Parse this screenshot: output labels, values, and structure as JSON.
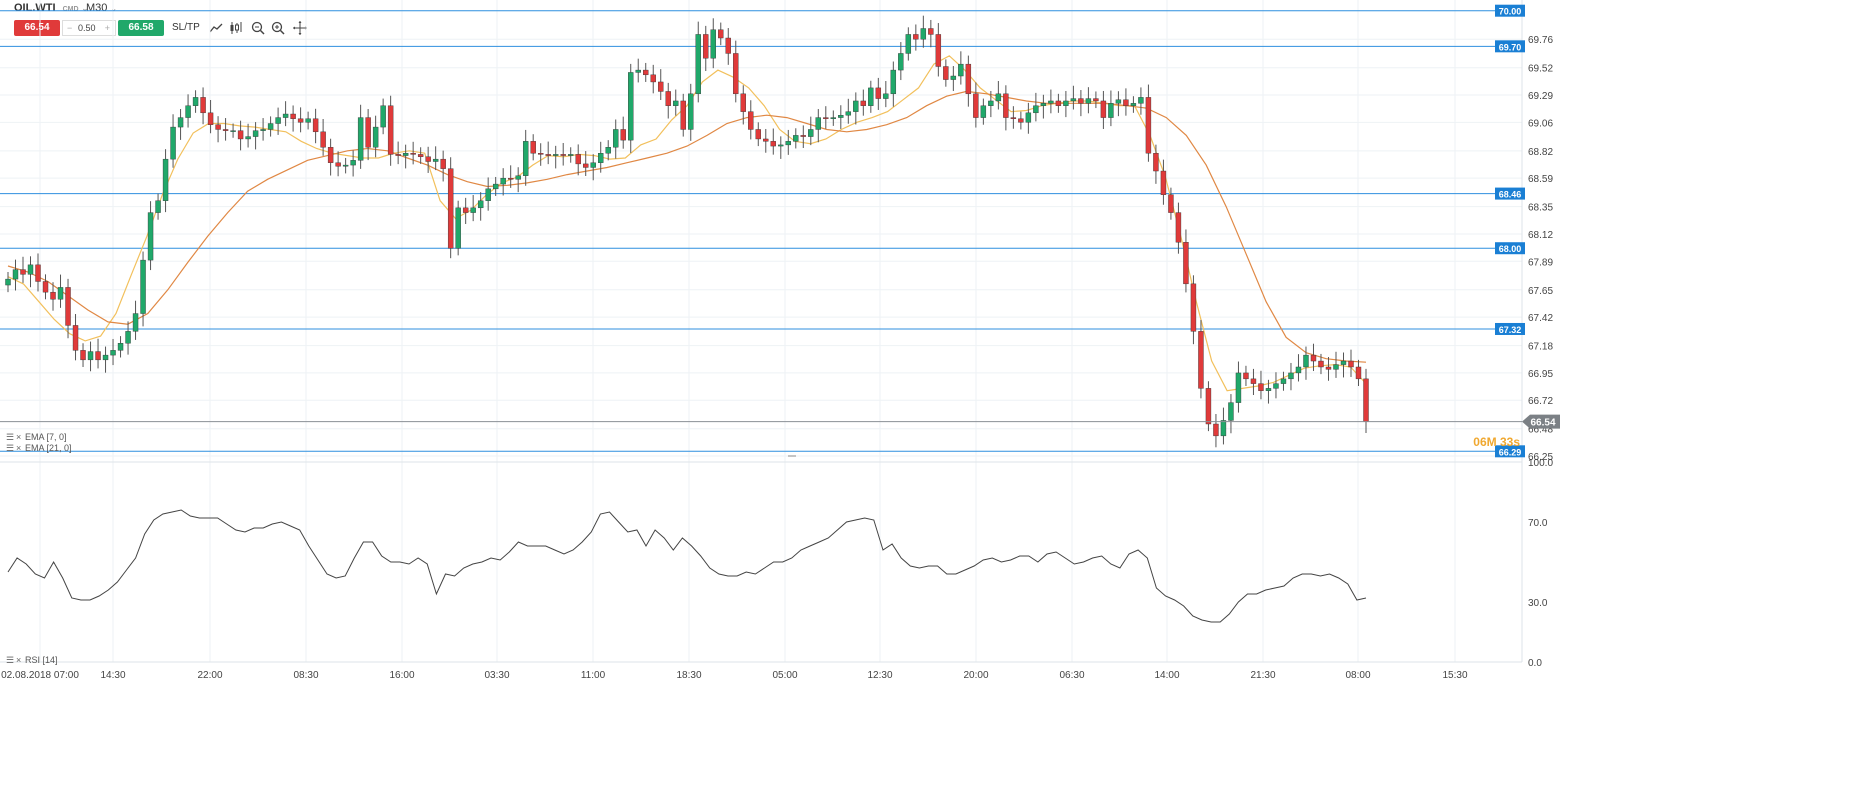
{
  "toolbar": {
    "symbol": "OIL.WTI",
    "market": "CMD",
    "timeframe": "M30",
    "sell_price": "66.54",
    "spread_minus": "−",
    "spread_value": "0.50",
    "spread_plus": "+",
    "buy_price": "66.58",
    "sltp_label": "SL/TP",
    "icons": [
      "line-chart-icon",
      "candlestick-icon",
      "zoom-out-icon",
      "zoom-in-icon",
      "crosshair-icon"
    ]
  },
  "price_axis": {
    "ticks": [
      "69.76",
      "69.52",
      "69.29",
      "69.06",
      "68.82",
      "68.59",
      "68.35",
      "68.12",
      "67.89",
      "67.65",
      "67.42",
      "67.18",
      "66.95",
      "66.72",
      "66.48",
      "66.25"
    ],
    "top_partial_label": "70.00"
  },
  "horizontal_lines": [
    {
      "price": "70.00",
      "label": "70.00"
    },
    {
      "price": "69.70",
      "label": "69.70"
    },
    {
      "price": "68.46",
      "label": "68.46"
    },
    {
      "price": "68.00",
      "label": "68.00"
    },
    {
      "price": "67.32",
      "label": "67.32"
    },
    {
      "price": "66.29",
      "label": "66.29"
    }
  ],
  "current_price": {
    "value": "66.54",
    "countdown": "06M 33s"
  },
  "indicators": [
    {
      "label": "EMA [7, 0]",
      "color": "#f2c05c"
    },
    {
      "label": "EMA [21, 0]",
      "color": "#e08844"
    }
  ],
  "rsi": {
    "label": "RSI [14]",
    "ticks": [
      "100.0",
      "70.0",
      "30.0",
      "0.0"
    ]
  },
  "time_axis": [
    "02.08.2018 07:00",
    "14:30",
    "22:00",
    "08:30",
    "16:00",
    "03:30",
    "11:00",
    "18:30",
    "05:00",
    "12:30",
    "20:00",
    "06:30",
    "14:00",
    "21:30",
    "08:00",
    "15:30"
  ],
  "colors": {
    "up": "#20a86a",
    "down": "#e03a3a",
    "hline": "#2f8fdf",
    "grid": "#eef2f5",
    "rsi_line": "#444444",
    "countdown": "#f0a830"
  },
  "chart_data": {
    "type": "candlestick",
    "ylim": [
      66.25,
      70.0
    ],
    "series": [
      {
        "name": "close",
        "values": [
          67.74,
          67.82,
          67.78,
          67.86,
          67.72,
          67.63,
          67.57,
          67.67,
          67.35,
          67.14,
          67.06,
          67.13,
          67.06,
          67.1,
          67.14,
          67.2,
          67.3,
          67.45,
          67.9,
          68.3,
          68.4,
          68.75,
          69.02,
          69.1,
          69.2,
          69.27,
          69.14,
          69.04,
          69.0,
          68.99,
          68.99,
          68.92,
          68.94,
          68.99,
          69.0,
          69.05,
          69.1,
          69.13,
          69.09,
          69.06,
          69.09,
          68.98,
          68.85,
          68.72,
          68.69,
          68.7,
          68.74,
          69.1,
          68.85,
          69.02,
          69.2,
          68.79,
          68.78,
          68.8,
          68.79,
          68.77,
          68.73,
          68.75,
          68.67,
          68.0,
          68.34,
          68.3,
          68.34,
          68.4,
          68.5,
          68.54,
          68.59,
          68.58,
          68.61,
          68.9,
          68.8,
          68.79,
          68.78,
          68.79,
          68.78,
          68.79,
          68.71,
          68.68,
          68.72,
          68.8,
          68.85,
          69.0,
          68.91,
          69.48,
          69.5,
          69.46,
          69.4,
          69.32,
          69.2,
          69.24,
          69.0,
          69.3,
          69.8,
          69.6,
          69.84,
          69.77,
          69.64,
          69.3,
          69.15,
          69.0,
          68.92,
          68.9,
          68.86,
          68.87,
          68.9,
          68.95,
          68.94,
          69.0,
          69.1,
          69.09,
          69.1,
          69.12,
          69.15,
          69.24,
          69.2,
          69.35,
          69.26,
          69.3,
          69.5,
          69.64,
          69.8,
          69.76,
          69.85,
          69.8,
          69.53,
          69.42,
          69.45,
          69.55,
          69.3,
          69.1,
          69.2,
          69.24,
          69.3,
          69.1,
          69.09,
          69.06,
          69.14,
          69.2,
          69.22,
          69.24,
          69.2,
          69.24,
          69.26,
          69.22,
          69.26,
          69.24,
          69.1,
          69.22,
          69.25,
          69.2,
          69.22,
          69.27,
          68.8,
          68.65,
          68.45,
          68.3,
          68.05,
          67.7,
          67.3,
          66.82,
          66.52,
          66.42,
          66.55,
          66.7,
          66.95,
          66.9,
          66.86,
          66.8,
          66.82,
          66.86,
          66.9,
          66.95,
          67.0,
          67.1,
          67.05,
          67.0,
          66.98,
          67.02,
          67.05,
          67.0,
          66.9,
          66.54
        ]
      },
      {
        "name": "EMA [7, 0]",
        "values": [
          67.76,
          67.7,
          67.55,
          67.4,
          67.28,
          67.22,
          67.26,
          67.45,
          67.78,
          68.1,
          68.45,
          68.75,
          68.97,
          69.05,
          69.05,
          69.03,
          69.02,
          69.0,
          68.98,
          68.9,
          68.84,
          68.8,
          68.78,
          68.76,
          68.76,
          68.8,
          68.82,
          68.8,
          68.4,
          68.25,
          68.32,
          68.45,
          68.55,
          68.6,
          68.7,
          68.78,
          68.77,
          68.79,
          68.78,
          68.75,
          68.76,
          68.87,
          68.92,
          69.08,
          69.2,
          69.4,
          69.5,
          69.44,
          69.35,
          69.2,
          69.0,
          68.9,
          68.88,
          68.92,
          69.0,
          69.06,
          69.1,
          69.15,
          69.25,
          69.35,
          69.55,
          69.62,
          69.5,
          69.35,
          69.25,
          69.15,
          69.16,
          69.2,
          69.22,
          69.24,
          69.24,
          69.22,
          69.2,
          69.2,
          68.95,
          68.6,
          68.1,
          67.55,
          67.05,
          66.8,
          66.82,
          66.84,
          66.87,
          66.93,
          66.99,
          67.01,
          67.02,
          67.0,
          66.86
        ]
      },
      {
        "name": "EMA [21, 0]",
        "values": [
          67.85,
          67.8,
          67.72,
          67.6,
          67.48,
          67.38,
          67.36,
          67.45,
          67.65,
          67.88,
          68.1,
          68.3,
          68.48,
          68.58,
          68.66,
          68.74,
          68.78,
          68.82,
          68.84,
          68.82,
          68.76,
          68.7,
          68.62,
          68.56,
          68.52,
          68.53,
          68.55,
          68.58,
          68.62,
          68.65,
          68.68,
          68.72,
          68.76,
          68.8,
          68.86,
          68.95,
          69.05,
          69.1,
          69.12,
          69.1,
          69.05,
          69.0,
          68.98,
          69.0,
          69.04,
          69.1,
          69.2,
          69.28,
          69.32,
          69.3,
          69.27,
          69.24,
          69.22,
          69.22,
          69.22,
          69.22,
          69.2,
          69.18,
          69.1,
          68.95,
          68.7,
          68.35,
          67.95,
          67.55,
          67.25,
          67.12,
          67.07,
          67.05,
          67.04
        ]
      }
    ],
    "rsi_values": [
      45,
      52,
      49,
      44,
      42,
      50,
      42,
      32,
      31,
      31,
      33,
      36,
      40,
      46,
      52,
      64,
      71,
      74,
      75,
      76,
      73,
      72,
      72,
      72,
      69,
      66,
      65,
      67,
      67,
      69,
      70,
      68,
      66,
      58,
      51,
      44,
      42,
      43,
      52,
      60,
      60,
      53,
      50,
      50,
      49,
      52,
      49,
      34,
      44,
      43,
      47,
      49,
      50,
      52,
      51,
      55,
      60,
      58,
      58,
      58,
      56,
      54,
      56,
      60,
      65,
      74,
      75,
      70,
      65,
      66,
      58,
      66,
      62,
      56,
      62,
      58,
      53,
      47,
      44,
      43,
      43,
      45,
      44,
      47,
      50,
      50,
      52,
      56,
      58,
      60,
      62,
      66,
      70,
      71,
      72,
      71,
      56,
      59,
      52,
      48,
      47,
      48,
      48,
      44,
      44,
      46,
      48,
      51,
      52,
      50,
      51,
      53,
      53,
      50,
      54,
      55,
      52,
      49,
      50,
      52,
      53,
      49,
      47,
      54,
      56,
      52,
      37,
      33,
      31,
      28,
      23,
      21,
      20,
      20,
      24,
      30,
      34,
      34,
      36,
      37,
      38,
      42,
      44,
      44,
      43,
      44,
      42,
      39,
      31,
      32
    ]
  }
}
